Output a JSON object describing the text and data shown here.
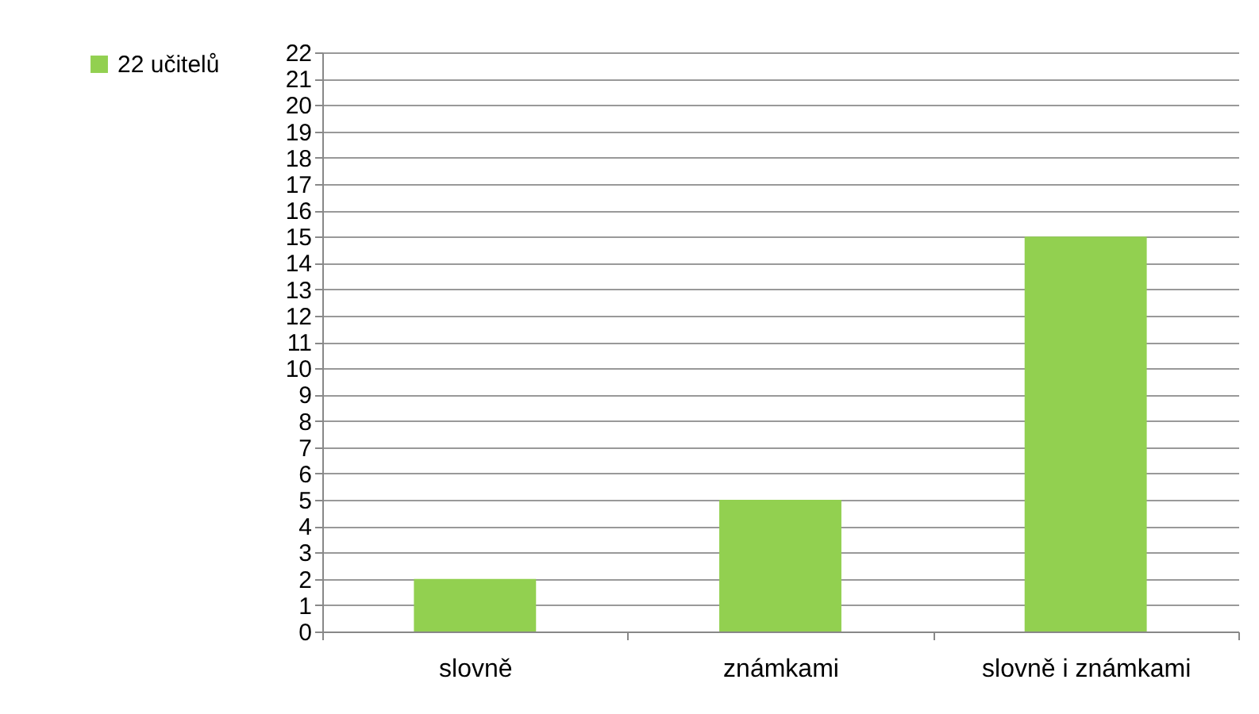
{
  "chart_data": {
    "type": "bar",
    "categories": [
      "slovně",
      "známkami",
      "slovně i známkami"
    ],
    "series": [
      {
        "name": "22 učitelů",
        "color": "#92d050",
        "values": [
          2,
          5,
          15
        ]
      }
    ],
    "ylim": [
      0,
      22
    ],
    "yticks": [
      0,
      1,
      2,
      3,
      4,
      5,
      6,
      7,
      8,
      9,
      10,
      11,
      12,
      13,
      14,
      15,
      16,
      17,
      18,
      19,
      20,
      21,
      22
    ],
    "grid": "y",
    "legend": "left"
  }
}
